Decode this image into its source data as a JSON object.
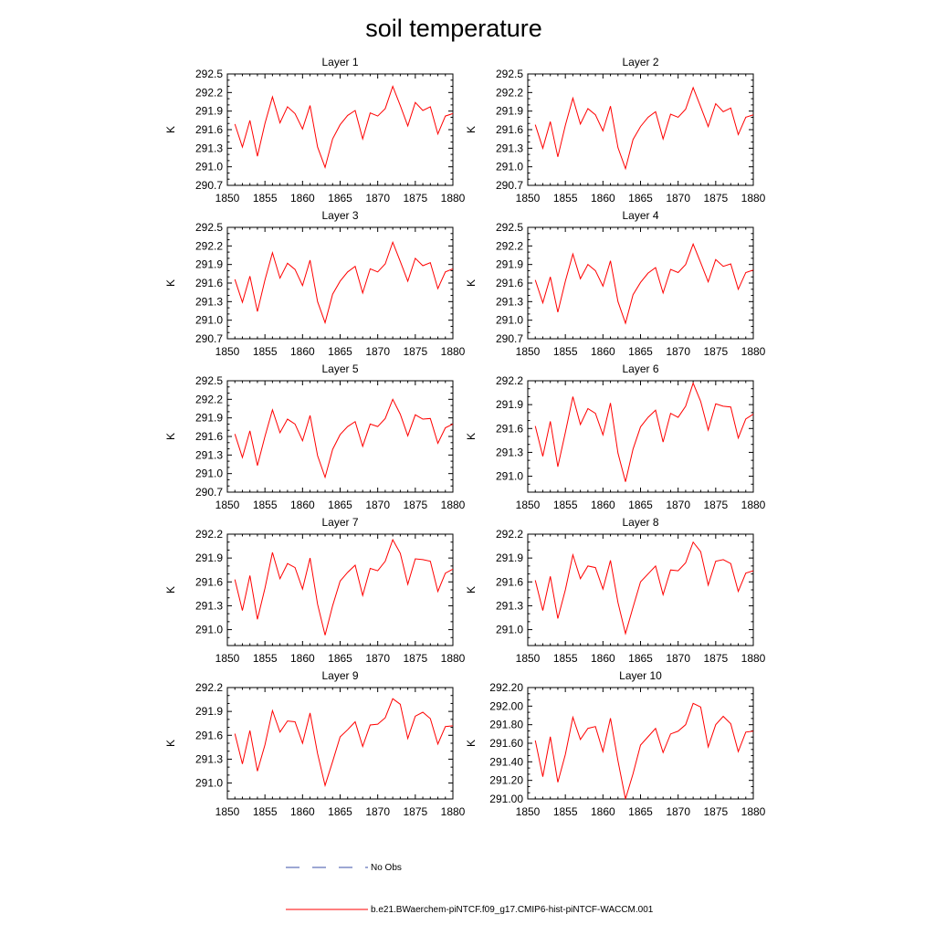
{
  "title": "soil temperature",
  "legend": {
    "entries": [
      {
        "label": "No Obs",
        "color": "#3b4fa8",
        "dashed": true
      },
      {
        "label": "b.e21.BWaerchem-piNTCF.f09_g17.CMIP6-hist-piNTCF-WACCM.001",
        "color": "#ff0000",
        "dashed": false
      }
    ]
  },
  "chart_data": [
    {
      "type": "line",
      "title": "Layer 1",
      "ylabel": "K",
      "xlim": [
        1850,
        1880
      ],
      "ylim": [
        290.7,
        292.5
      ],
      "xticks": [
        1850,
        1855,
        1860,
        1865,
        1870,
        1875,
        1880
      ],
      "yticks": [
        "290.7",
        "291.0",
        "291.3",
        "291.6",
        "291.9",
        "292.2",
        "292.5"
      ],
      "series": [
        {
          "color": "#ff0000",
          "x": [
            1851,
            1852,
            1853,
            1854,
            1855,
            1856,
            1857,
            1858,
            1859,
            1860,
            1861,
            1862,
            1863,
            1864,
            1865,
            1866,
            1867,
            1868,
            1869,
            1870,
            1871,
            1872,
            1873,
            1874,
            1875,
            1876,
            1877,
            1878,
            1879,
            1880
          ],
          "y": [
            291.69,
            291.32,
            291.75,
            291.17,
            291.7,
            292.13,
            291.71,
            291.97,
            291.86,
            291.61,
            291.99,
            291.32,
            290.99,
            291.45,
            291.68,
            291.83,
            291.91,
            291.45,
            291.87,
            291.82,
            291.94,
            292.3,
            291.99,
            291.66,
            292.04,
            291.91,
            291.97,
            291.53,
            291.82,
            291.86
          ]
        }
      ]
    },
    {
      "type": "line",
      "title": "Layer 2",
      "ylabel": "K",
      "xlim": [
        1850,
        1880
      ],
      "ylim": [
        290.7,
        292.5
      ],
      "xticks": [
        1850,
        1855,
        1860,
        1865,
        1870,
        1875,
        1880
      ],
      "yticks": [
        "290.7",
        "291.0",
        "291.3",
        "291.6",
        "291.9",
        "292.2",
        "292.5"
      ],
      "series": [
        {
          "color": "#ff0000",
          "x": [
            1851,
            1852,
            1853,
            1854,
            1855,
            1856,
            1857,
            1858,
            1859,
            1860,
            1861,
            1862,
            1863,
            1864,
            1865,
            1866,
            1867,
            1868,
            1869,
            1870,
            1871,
            1872,
            1873,
            1874,
            1875,
            1876,
            1877,
            1878,
            1879,
            1880
          ],
          "y": [
            291.68,
            291.3,
            291.73,
            291.16,
            291.67,
            292.11,
            291.69,
            291.94,
            291.84,
            291.58,
            291.98,
            291.31,
            290.97,
            291.44,
            291.65,
            291.8,
            291.89,
            291.45,
            291.85,
            291.8,
            291.93,
            292.28,
            291.97,
            291.65,
            292.02,
            291.89,
            291.95,
            291.52,
            291.8,
            291.84
          ]
        }
      ]
    },
    {
      "type": "line",
      "title": "Layer 3",
      "ylabel": "K",
      "xlim": [
        1850,
        1880
      ],
      "ylim": [
        290.7,
        292.5
      ],
      "xticks": [
        1850,
        1855,
        1860,
        1865,
        1870,
        1875,
        1880
      ],
      "yticks": [
        "290.7",
        "291.0",
        "291.3",
        "291.6",
        "291.9",
        "292.2",
        "292.5"
      ],
      "series": [
        {
          "color": "#ff0000",
          "x": [
            1851,
            1852,
            1853,
            1854,
            1855,
            1856,
            1857,
            1858,
            1859,
            1860,
            1861,
            1862,
            1863,
            1864,
            1865,
            1866,
            1867,
            1868,
            1869,
            1870,
            1871,
            1872,
            1873,
            1874,
            1875,
            1876,
            1877,
            1878,
            1879,
            1880
          ],
          "y": [
            291.66,
            291.29,
            291.71,
            291.14,
            291.65,
            292.09,
            291.68,
            291.92,
            291.82,
            291.56,
            291.97,
            291.3,
            290.96,
            291.42,
            291.63,
            291.78,
            291.87,
            291.44,
            291.83,
            291.78,
            291.91,
            292.26,
            291.95,
            291.63,
            292.0,
            291.88,
            291.93,
            291.51,
            291.78,
            291.83
          ]
        }
      ]
    },
    {
      "type": "line",
      "title": "Layer 4",
      "ylabel": "K",
      "xlim": [
        1850,
        1880
      ],
      "ylim": [
        290.7,
        292.5
      ],
      "xticks": [
        1850,
        1855,
        1860,
        1865,
        1870,
        1875,
        1880
      ],
      "yticks": [
        "290.7",
        "291.0",
        "291.3",
        "291.6",
        "291.9",
        "292.2",
        "292.5"
      ],
      "series": [
        {
          "color": "#ff0000",
          "x": [
            1851,
            1852,
            1853,
            1854,
            1855,
            1856,
            1857,
            1858,
            1859,
            1860,
            1861,
            1862,
            1863,
            1864,
            1865,
            1866,
            1867,
            1868,
            1869,
            1870,
            1871,
            1872,
            1873,
            1874,
            1875,
            1876,
            1877,
            1878,
            1879,
            1880
          ],
          "y": [
            291.65,
            291.28,
            291.7,
            291.13,
            291.63,
            292.07,
            291.67,
            291.9,
            291.8,
            291.55,
            291.96,
            291.3,
            290.95,
            291.41,
            291.61,
            291.76,
            291.85,
            291.44,
            291.82,
            291.77,
            291.9,
            292.23,
            291.93,
            291.62,
            291.98,
            291.87,
            291.91,
            291.5,
            291.77,
            291.81
          ]
        }
      ]
    },
    {
      "type": "line",
      "title": "Layer 5",
      "ylabel": "K",
      "xlim": [
        1850,
        1880
      ],
      "ylim": [
        290.7,
        292.5
      ],
      "xticks": [
        1850,
        1855,
        1860,
        1865,
        1870,
        1875,
        1880
      ],
      "yticks": [
        "290.7",
        "291.0",
        "291.3",
        "291.6",
        "291.9",
        "292.2",
        "292.5"
      ],
      "series": [
        {
          "color": "#ff0000",
          "x": [
            1851,
            1852,
            1853,
            1854,
            1855,
            1856,
            1857,
            1858,
            1859,
            1860,
            1861,
            1862,
            1863,
            1864,
            1865,
            1866,
            1867,
            1868,
            1869,
            1870,
            1871,
            1872,
            1873,
            1874,
            1875,
            1876,
            1877,
            1878,
            1879,
            1880
          ],
          "y": [
            291.64,
            291.26,
            291.69,
            291.13,
            291.6,
            292.03,
            291.66,
            291.88,
            291.8,
            291.53,
            291.94,
            291.29,
            290.94,
            291.39,
            291.63,
            291.76,
            291.84,
            291.44,
            291.8,
            291.76,
            291.89,
            292.2,
            291.96,
            291.61,
            291.95,
            291.88,
            291.89,
            291.49,
            291.74,
            291.8
          ]
        }
      ]
    },
    {
      "type": "line",
      "title": "Layer 6",
      "ylabel": "K",
      "xlim": [
        1850,
        1880
      ],
      "ylim": [
        290.8,
        292.2
      ],
      "xticks": [
        1850,
        1855,
        1860,
        1865,
        1870,
        1875,
        1880
      ],
      "yticks": [
        "291.0",
        "291.3",
        "291.6",
        "291.9",
        "292.2"
      ],
      "series": [
        {
          "color": "#ff0000",
          "x": [
            1851,
            1852,
            1853,
            1854,
            1855,
            1856,
            1857,
            1858,
            1859,
            1860,
            1861,
            1862,
            1863,
            1864,
            1865,
            1866,
            1867,
            1868,
            1869,
            1870,
            1871,
            1872,
            1873,
            1874,
            1875,
            1876,
            1877,
            1878,
            1879,
            1880
          ],
          "y": [
            291.63,
            291.25,
            291.69,
            291.12,
            291.55,
            292.0,
            291.65,
            291.85,
            291.79,
            291.52,
            291.92,
            291.29,
            290.93,
            291.34,
            291.62,
            291.74,
            291.83,
            291.43,
            291.79,
            291.74,
            291.88,
            292.17,
            291.94,
            291.58,
            291.91,
            291.88,
            291.87,
            291.48,
            291.72,
            291.78
          ]
        }
      ]
    },
    {
      "type": "line",
      "title": "Layer 7",
      "ylabel": "K",
      "xlim": [
        1850,
        1880
      ],
      "ylim": [
        290.8,
        292.2
      ],
      "xticks": [
        1850,
        1855,
        1860,
        1865,
        1870,
        1875,
        1880
      ],
      "yticks": [
        "291.0",
        "291.3",
        "291.6",
        "291.9",
        "292.2"
      ],
      "series": [
        {
          "color": "#ff0000",
          "x": [
            1851,
            1852,
            1853,
            1854,
            1855,
            1856,
            1857,
            1858,
            1859,
            1860,
            1861,
            1862,
            1863,
            1864,
            1865,
            1866,
            1867,
            1868,
            1869,
            1870,
            1871,
            1872,
            1873,
            1874,
            1875,
            1876,
            1877,
            1878,
            1879,
            1880
          ],
          "y": [
            291.63,
            291.24,
            291.68,
            291.13,
            291.52,
            291.97,
            291.64,
            291.83,
            291.78,
            291.51,
            291.9,
            291.32,
            290.93,
            291.3,
            291.61,
            291.72,
            291.81,
            291.43,
            291.77,
            291.74,
            291.86,
            292.13,
            291.96,
            291.57,
            291.89,
            291.88,
            291.86,
            291.48,
            291.71,
            291.76
          ]
        }
      ]
    },
    {
      "type": "line",
      "title": "Layer 8",
      "ylabel": "K",
      "xlim": [
        1850,
        1880
      ],
      "ylim": [
        290.8,
        292.2
      ],
      "xticks": [
        1850,
        1855,
        1860,
        1865,
        1870,
        1875,
        1880
      ],
      "yticks": [
        "291.0",
        "291.3",
        "291.6",
        "291.9",
        "292.2"
      ],
      "series": [
        {
          "color": "#ff0000",
          "x": [
            1851,
            1852,
            1853,
            1854,
            1855,
            1856,
            1857,
            1858,
            1859,
            1860,
            1861,
            1862,
            1863,
            1864,
            1865,
            1866,
            1867,
            1868,
            1869,
            1870,
            1871,
            1872,
            1873,
            1874,
            1875,
            1876,
            1877,
            1878,
            1879,
            1880
          ],
          "y": [
            291.62,
            291.24,
            291.67,
            291.14,
            291.5,
            291.94,
            291.64,
            291.8,
            291.78,
            291.51,
            291.87,
            291.34,
            290.95,
            291.28,
            291.6,
            291.7,
            291.8,
            291.44,
            291.75,
            291.74,
            291.84,
            292.1,
            291.98,
            291.56,
            291.86,
            291.88,
            291.83,
            291.48,
            291.71,
            291.74
          ]
        }
      ]
    },
    {
      "type": "line",
      "title": "Layer 9",
      "ylabel": "K",
      "xlim": [
        1850,
        1880
      ],
      "ylim": [
        290.8,
        292.2
      ],
      "xticks": [
        1850,
        1855,
        1860,
        1865,
        1870,
        1875,
        1880
      ],
      "yticks": [
        "291.0",
        "291.3",
        "291.6",
        "291.9",
        "292.2"
      ],
      "series": [
        {
          "color": "#ff0000",
          "x": [
            1851,
            1852,
            1853,
            1854,
            1855,
            1856,
            1857,
            1858,
            1859,
            1860,
            1861,
            1862,
            1863,
            1864,
            1865,
            1866,
            1867,
            1868,
            1869,
            1870,
            1871,
            1872,
            1873,
            1874,
            1875,
            1876,
            1877,
            1878,
            1879,
            1880
          ],
          "y": [
            291.62,
            291.24,
            291.66,
            291.15,
            291.48,
            291.91,
            291.64,
            291.78,
            291.77,
            291.5,
            291.88,
            291.37,
            290.97,
            291.27,
            291.58,
            291.67,
            291.77,
            291.46,
            291.73,
            291.74,
            291.82,
            292.06,
            291.99,
            291.56,
            291.84,
            291.89,
            291.81,
            291.49,
            291.71,
            291.72
          ]
        }
      ]
    },
    {
      "type": "line",
      "title": "Layer 10",
      "ylabel": "K",
      "xlim": [
        1850,
        1880
      ],
      "ylim": [
        291.0,
        292.2
      ],
      "xticks": [
        1850,
        1855,
        1860,
        1865,
        1870,
        1875,
        1880
      ],
      "yticks": [
        "291.00",
        "291.20",
        "291.40",
        "291.60",
        "291.80",
        "292.00",
        "292.20"
      ],
      "series": [
        {
          "color": "#ff0000",
          "x": [
            1851,
            1852,
            1853,
            1854,
            1855,
            1856,
            1857,
            1858,
            1859,
            1860,
            1861,
            1862,
            1863,
            1864,
            1865,
            1866,
            1867,
            1868,
            1869,
            1870,
            1871,
            1872,
            1873,
            1874,
            1875,
            1876,
            1877,
            1878,
            1879,
            1880
          ],
          "y": [
            291.63,
            291.24,
            291.67,
            291.18,
            291.48,
            291.88,
            291.64,
            291.76,
            291.78,
            291.51,
            291.87,
            291.41,
            291.0,
            291.27,
            291.58,
            291.67,
            291.76,
            291.5,
            291.7,
            291.73,
            291.8,
            292.03,
            291.99,
            291.56,
            291.8,
            291.89,
            291.81,
            291.51,
            291.72,
            291.73
          ]
        }
      ]
    }
  ]
}
